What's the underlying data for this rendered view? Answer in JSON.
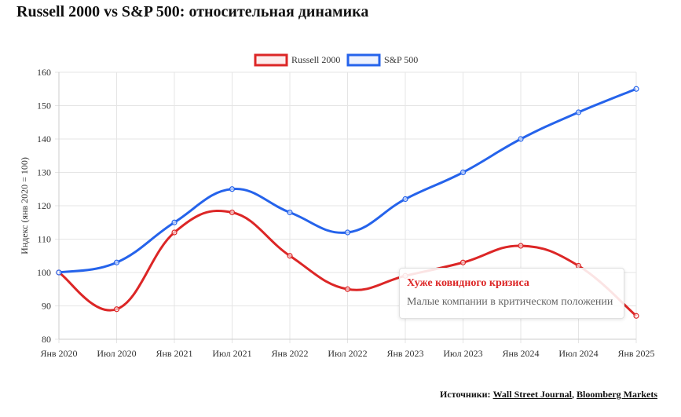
{
  "title": "Russell 2000 vs S&P 500: относительная динамика",
  "chart_data": {
    "type": "line",
    "categories": [
      "Янв 2020",
      "Июл 2020",
      "Янв 2021",
      "Июл 2021",
      "Янв 2022",
      "Июл 2022",
      "Янв 2023",
      "Июл 2023",
      "Янв 2024",
      "Июл 2024",
      "Янв 2025"
    ],
    "series": [
      {
        "name": "Russell 2000",
        "color": "#dc2626",
        "values": [
          100,
          89,
          112,
          118,
          105,
          95,
          99,
          103,
          108,
          102,
          87
        ]
      },
      {
        "name": "S&P 500",
        "color": "#2563eb",
        "values": [
          100,
          103,
          115,
          125,
          118,
          112,
          122,
          130,
          140,
          148,
          155
        ]
      }
    ],
    "ylabel": "Индекс (янв 2020 = 100)",
    "ylim": [
      80,
      160
    ],
    "yticks": [
      80,
      90,
      100,
      110,
      120,
      130,
      140,
      150,
      160
    ],
    "grid": true,
    "legend": "top-center"
  },
  "tooltip": {
    "title": "Хуже ковидного кризиса",
    "body": "Малые компании в критическом положении"
  },
  "footer": {
    "label": "Источники:",
    "sources": [
      "Wall Street Journal",
      "Bloomberg Markets"
    ],
    "sep": ","
  }
}
